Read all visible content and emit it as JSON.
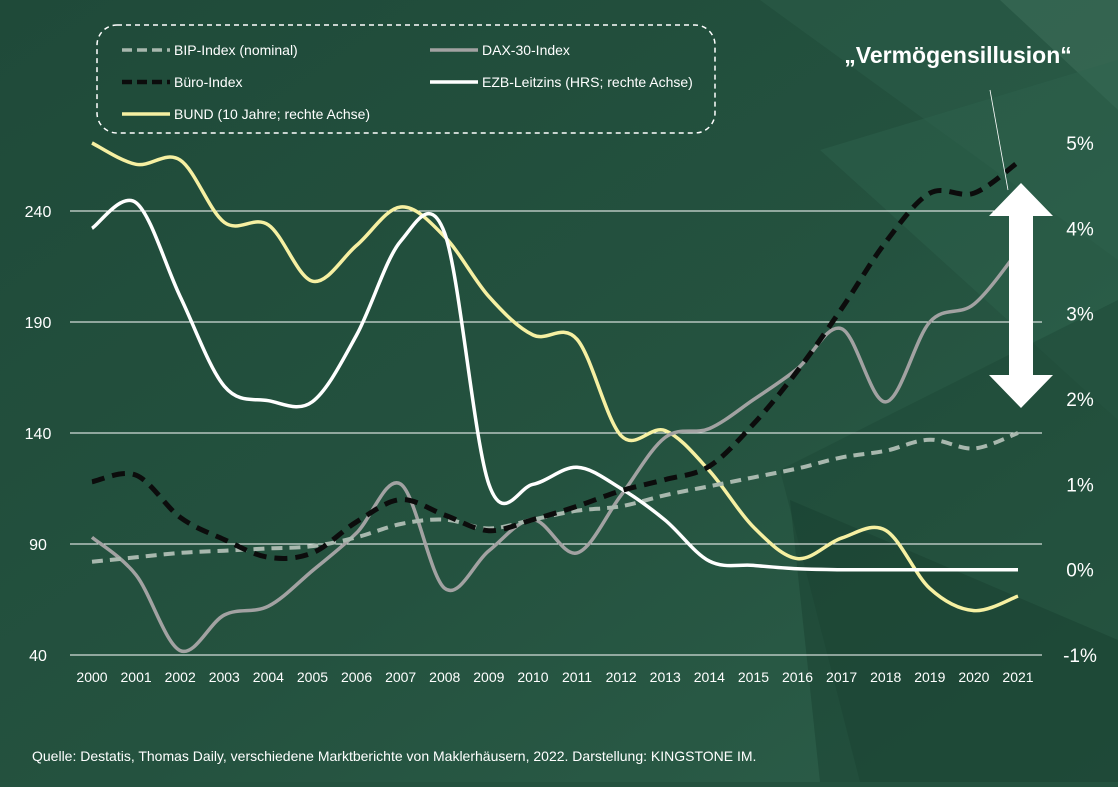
{
  "title": "„Vermögensillusion“",
  "source": "Quelle: Destatis, Thomas Daily, verschiedene Marktberichte von Maklerhäusern, 2022. Darstellung: KINGSTONE IM.",
  "colors": {
    "background": "#24523f",
    "bip": "#a8b8ae",
    "dax": "#a2a2a2",
    "buero": "#0c0c0c",
    "ezb": "#ffffff",
    "bund": "#f6f0a2",
    "grid": "#ffffff",
    "text": "#ffffff"
  },
  "legend": {
    "placement": "top-left",
    "entries": [
      {
        "key": "bip",
        "label": "BIP-Index (nominal)",
        "style": "dashed"
      },
      {
        "key": "dax",
        "label": "DAX-30-Index",
        "style": "solid"
      },
      {
        "key": "buero",
        "label": "Büro-Index",
        "style": "dashed"
      },
      {
        "key": "ezb",
        "label": "EZB-Leitzins (HRS; rechte Achse)",
        "style": "solid"
      },
      {
        "key": "bund",
        "label": "BUND (10 Jahre; rechte Achse)",
        "style": "solid"
      }
    ]
  },
  "chart_data": {
    "type": "line",
    "x": [
      2000,
      2001,
      2002,
      2003,
      2004,
      2005,
      2006,
      2007,
      2008,
      2009,
      2010,
      2011,
      2012,
      2013,
      2014,
      2015,
      2016,
      2017,
      2018,
      2019,
      2020,
      2021
    ],
    "x_tick_labels": [
      "2000",
      "2001",
      "2002",
      "2003",
      "2004",
      "2005",
      "2006",
      "2007",
      "2008",
      "2009",
      "2010",
      "2011",
      "2012",
      "2013",
      "2014",
      "2015",
      "2016",
      "2017",
      "2018",
      "2019",
      "2020",
      "2021"
    ],
    "y_left": {
      "ticks": [
        "40",
        "90",
        "140",
        "190",
        "240"
      ],
      "range": [
        40,
        280
      ]
    },
    "y_right": {
      "ticks": [
        "-1%",
        "0%",
        "1%",
        "2%",
        "3%",
        "4%",
        "5%"
      ],
      "range": [
        -1,
        5
      ]
    },
    "grid": true,
    "series": [
      {
        "name": "BIP-Index (nominal)",
        "axis": "left",
        "key": "bip",
        "values": [
          82,
          84,
          86,
          87,
          88,
          89,
          93,
          99,
          101,
          97,
          101,
          105,
          107,
          112,
          116,
          120,
          124,
          129,
          132,
          137,
          133,
          140
        ]
      },
      {
        "name": "DAX-30-Index",
        "axis": "left",
        "key": "dax",
        "values": [
          93,
          76,
          42,
          58,
          62,
          78,
          95,
          117,
          70,
          87,
          101,
          86,
          112,
          138,
          142,
          155,
          169,
          187,
          154,
          190,
          198,
          222
        ]
      },
      {
        "name": "Büro-Index",
        "axis": "left",
        "key": "buero",
        "values": [
          118,
          121,
          102,
          92,
          84,
          86,
          100,
          110,
          103,
          96,
          101,
          107,
          114,
          119,
          125,
          144,
          168,
          196,
          226,
          248,
          248,
          262
        ]
      },
      {
        "name": "EZB-Leitzins (HRS; rechte Achse)",
        "axis": "right",
        "key": "ezb",
        "values": [
          4.0,
          4.3,
          3.2,
          2.15,
          1.98,
          1.97,
          2.75,
          3.85,
          3.94,
          1.0,
          1.0,
          1.2,
          0.95,
          0.58,
          0.1,
          0.05,
          0.01,
          0,
          0,
          0,
          0,
          0
        ]
      },
      {
        "name": "BUND (10 Jahre; rechte Achse)",
        "axis": "right",
        "key": "bund",
        "values": [
          5.0,
          4.75,
          4.8,
          4.07,
          4.04,
          3.38,
          3.8,
          4.25,
          3.9,
          3.2,
          2.75,
          2.7,
          1.57,
          1.63,
          1.16,
          0.5,
          0.13,
          0.37,
          0.46,
          -0.22,
          -0.48,
          -0.31
        ]
      }
    ]
  }
}
